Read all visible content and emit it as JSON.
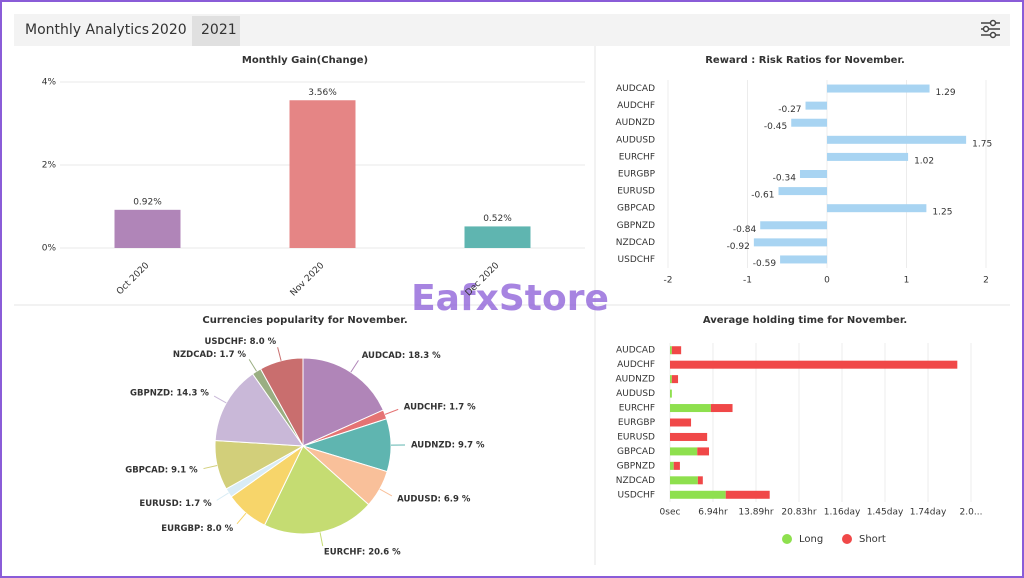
{
  "tabs": [
    "Monthly Analytics",
    "2020",
    "2021"
  ],
  "watermark": "EafxStore",
  "chart_data": [
    {
      "type": "bar",
      "title": "Monthly Gain(Change)",
      "categories": [
        "Oct 2020",
        "Nov 2020",
        "Dec 2020"
      ],
      "values": [
        0.92,
        3.56,
        0.52
      ],
      "value_labels": [
        "0.92%",
        "3.56%",
        "0.52%"
      ],
      "colors": [
        "#b085b8",
        "#e58585",
        "#5fb5b0"
      ],
      "ylim": [
        0,
        4
      ],
      "yticks": [
        {
          "value": 0,
          "label": "0%"
        },
        {
          "value": 2,
          "label": "2%"
        },
        {
          "value": 4,
          "label": "4%"
        }
      ]
    },
    {
      "type": "hbar",
      "title": "Reward : Risk Ratios for November.",
      "categories": [
        "AUDCAD",
        "AUDCHF",
        "AUDNZD",
        "AUDUSD",
        "EURCHF",
        "EURGBP",
        "EURUSD",
        "GBPCAD",
        "GBPNZD",
        "NZDCAD",
        "USDCHF"
      ],
      "values": [
        1.29,
        -0.27,
        -0.45,
        1.75,
        1.02,
        -0.34,
        -0.61,
        1.25,
        -0.84,
        -0.92,
        -0.59
      ],
      "color": "#a8d4f2",
      "xlim": [
        -2,
        2
      ],
      "xticks": [
        -2,
        -1,
        0,
        1,
        2
      ]
    },
    {
      "type": "pie",
      "title": "Currencies popularity for November.",
      "categories": [
        "AUDCAD",
        "AUDCHF",
        "AUDNZD",
        "AUDUSD",
        "EURCHF",
        "EURGBP",
        "EURUSD",
        "GBPCAD",
        "GBPNZD",
        "NZDCAD",
        "USDCHF"
      ],
      "values": [
        18.3,
        1.7,
        9.7,
        6.9,
        20.6,
        8.0,
        1.7,
        9.1,
        14.3,
        1.7,
        8.0
      ],
      "value_labels": [
        "AUDCAD: 18.3 %",
        "AUDCHF: 1.7 %",
        "AUDNZD: 9.7 %",
        "AUDUSD: 6.9 %",
        "EURCHF: 20.6 %",
        "EURGBP: 8.0 %",
        "EURUSD: 1.7 %",
        "GBPCAD: 9.1 %",
        "GBPNZD: 14.3 %",
        "NZDCAD: 1.7 %",
        "USDCHF: 8.0 %"
      ],
      "colors": [
        "#b085b8",
        "#e57373",
        "#5fb5b0",
        "#f9c09a",
        "#c5dc72",
        "#f7d56a",
        "#d9ecf5",
        "#d2cf7a",
        "#c9b8d8",
        "#9aae82",
        "#c96e6e"
      ]
    },
    {
      "type": "stackedhbar",
      "title": "Average holding time for November.",
      "categories": [
        "AUDCAD",
        "AUDCHF",
        "AUDNZD",
        "AUDUSD",
        "EURCHF",
        "EURGBP",
        "EURUSD",
        "GBPCAD",
        "GBPNZD",
        "NZDCAD",
        "USDCHF"
      ],
      "series": [
        {
          "name": "Long",
          "color": "#8ee04e",
          "values": [
            0.3,
            0,
            0.3,
            0.3,
            6.6,
            0,
            0,
            4.4,
            0.6,
            4.5,
            9.0
          ]
        },
        {
          "name": "Short",
          "color": "#f04848",
          "values": [
            1.5,
            46.4,
            1.0,
            0,
            3.5,
            3.4,
            6.0,
            1.9,
            1.0,
            0.8,
            7.1
          ]
        }
      ],
      "xlim": [
        0,
        48.61
      ],
      "xticks": [
        {
          "value": 0,
          "label": "0sec"
        },
        {
          "value": 6.94,
          "label": "6.94hr"
        },
        {
          "value": 13.89,
          "label": "13.89hr"
        },
        {
          "value": 20.83,
          "label": "20.83hr"
        },
        {
          "value": 27.78,
          "label": "1.16day"
        },
        {
          "value": 34.72,
          "label": "1.45day"
        },
        {
          "value": 41.67,
          "label": "1.74day"
        },
        {
          "value": 48.61,
          "label": "2.0..."
        }
      ]
    }
  ]
}
